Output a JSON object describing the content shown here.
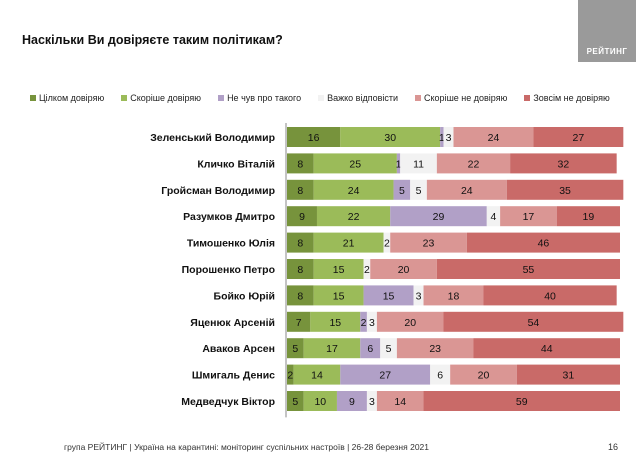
{
  "title": "Наскільки Ви довіряєте таким політикам?",
  "logo_text": "РЕЙТИНГ",
  "footer": "група РЕЙТИНГ | Україна на карантині: моніторинг суспільних настроїв | 26-28 березня 2021",
  "page_number": "16",
  "chart_data": {
    "type": "bar",
    "orientation": "horizontal",
    "stacked": true,
    "legend_position": "top",
    "xlim": [
      0,
      100
    ],
    "categories": [
      "Зеленський Володимир",
      "Кличко Віталій",
      "Гройсман Володимир",
      "Разумков Дмитро",
      "Тимошенко Юлія",
      "Порошенко Петро",
      "Бойко Юрій",
      "Яценюк Арсеній",
      "Аваков Арсен",
      "Шмигаль Денис",
      "Медведчук Віктор"
    ],
    "series": [
      {
        "name": "Цілком довіряю",
        "color": "#77933c",
        "values": [
          16,
          8,
          8,
          9,
          8,
          8,
          8,
          7,
          5,
          2,
          5
        ]
      },
      {
        "name": "Скоріше довіряю",
        "color": "#9bbb59",
        "values": [
          30,
          25,
          24,
          22,
          21,
          15,
          15,
          15,
          17,
          14,
          10
        ]
      },
      {
        "name": "Не чув про такого",
        "color": "#b1a0c7",
        "values": [
          1,
          1,
          5,
          29,
          0,
          0,
          15,
          2,
          6,
          27,
          9
        ]
      },
      {
        "name": "Важко відповісти",
        "color": "#f2f2f2",
        "values": [
          3,
          11,
          5,
          4,
          2,
          2,
          3,
          3,
          5,
          6,
          3
        ]
      },
      {
        "name": "Скоріше не довіряю",
        "color": "#da9694",
        "values": [
          24,
          22,
          24,
          17,
          23,
          20,
          18,
          20,
          23,
          20,
          14
        ]
      },
      {
        "name": "Зовсім не довіряю",
        "color": "#c96a68",
        "values": [
          27,
          32,
          35,
          19,
          46,
          55,
          40,
          54,
          44,
          31,
          59
        ]
      }
    ]
  }
}
